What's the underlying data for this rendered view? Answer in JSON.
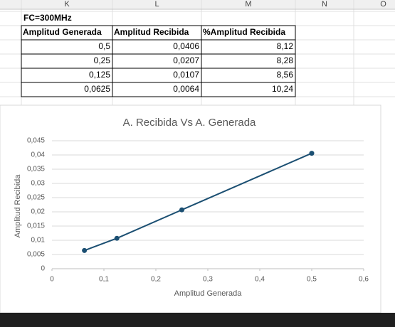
{
  "sheet": {
    "columns": [
      "K",
      "L",
      "M",
      "N",
      "O"
    ],
    "label": "FC=300MHz",
    "table": {
      "header": [
        "Amplitud Generada",
        "Amplitud Recibida",
        "%Amplitud Recibida"
      ],
      "rows": [
        [
          "0,5",
          "0,0406",
          "8,12"
        ],
        [
          "0,25",
          "0,0207",
          "8,28"
        ],
        [
          "0,125",
          "0,0107",
          "8,56"
        ],
        [
          "0,0625",
          "0,0064",
          "10,24"
        ]
      ]
    }
  },
  "chart_data": {
    "type": "line",
    "title": "A. Recibida Vs A. Generada",
    "x_label": "Amplitud Generada",
    "y_label": "Amplitud Recibida",
    "x": [
      0.5,
      0.25,
      0.125,
      0.0625
    ],
    "series": [
      {
        "color": "#1b4f72",
        "values": [
          0.0406,
          0.0207,
          0.0107,
          0.0064
        ]
      }
    ],
    "xlim": [
      0,
      0.6
    ],
    "xticks": [
      0,
      {
        "value": 0.1,
        "label": "0,1"
      },
      {
        "value": 0.2,
        "label": "0,2"
      },
      {
        "value": 0.3,
        "label": "0,3"
      },
      {
        "value": 0.4,
        "label": "0,4"
      },
      {
        "value": 0.5,
        "label": "0,5"
      },
      {
        "value": 0.6,
        "label": "0,6"
      }
    ],
    "ylim": [
      0,
      0.045
    ],
    "yticks": [
      0,
      {
        "value": 0.005,
        "label": "0,005"
      },
      {
        "value": 0.01,
        "label": "0,01"
      },
      {
        "value": 0.015,
        "label": "0,015"
      },
      {
        "value": 0.02,
        "label": "0,02"
      },
      {
        "value": 0.025,
        "label": "0,025"
      },
      {
        "value": 0.03,
        "label": "0,03"
      },
      {
        "value": 0.035,
        "label": "0,035"
      },
      {
        "value": 0.04,
        "label": "0,04"
      },
      {
        "value": 0.045,
        "label": "0,045"
      }
    ],
    "grid": true
  }
}
